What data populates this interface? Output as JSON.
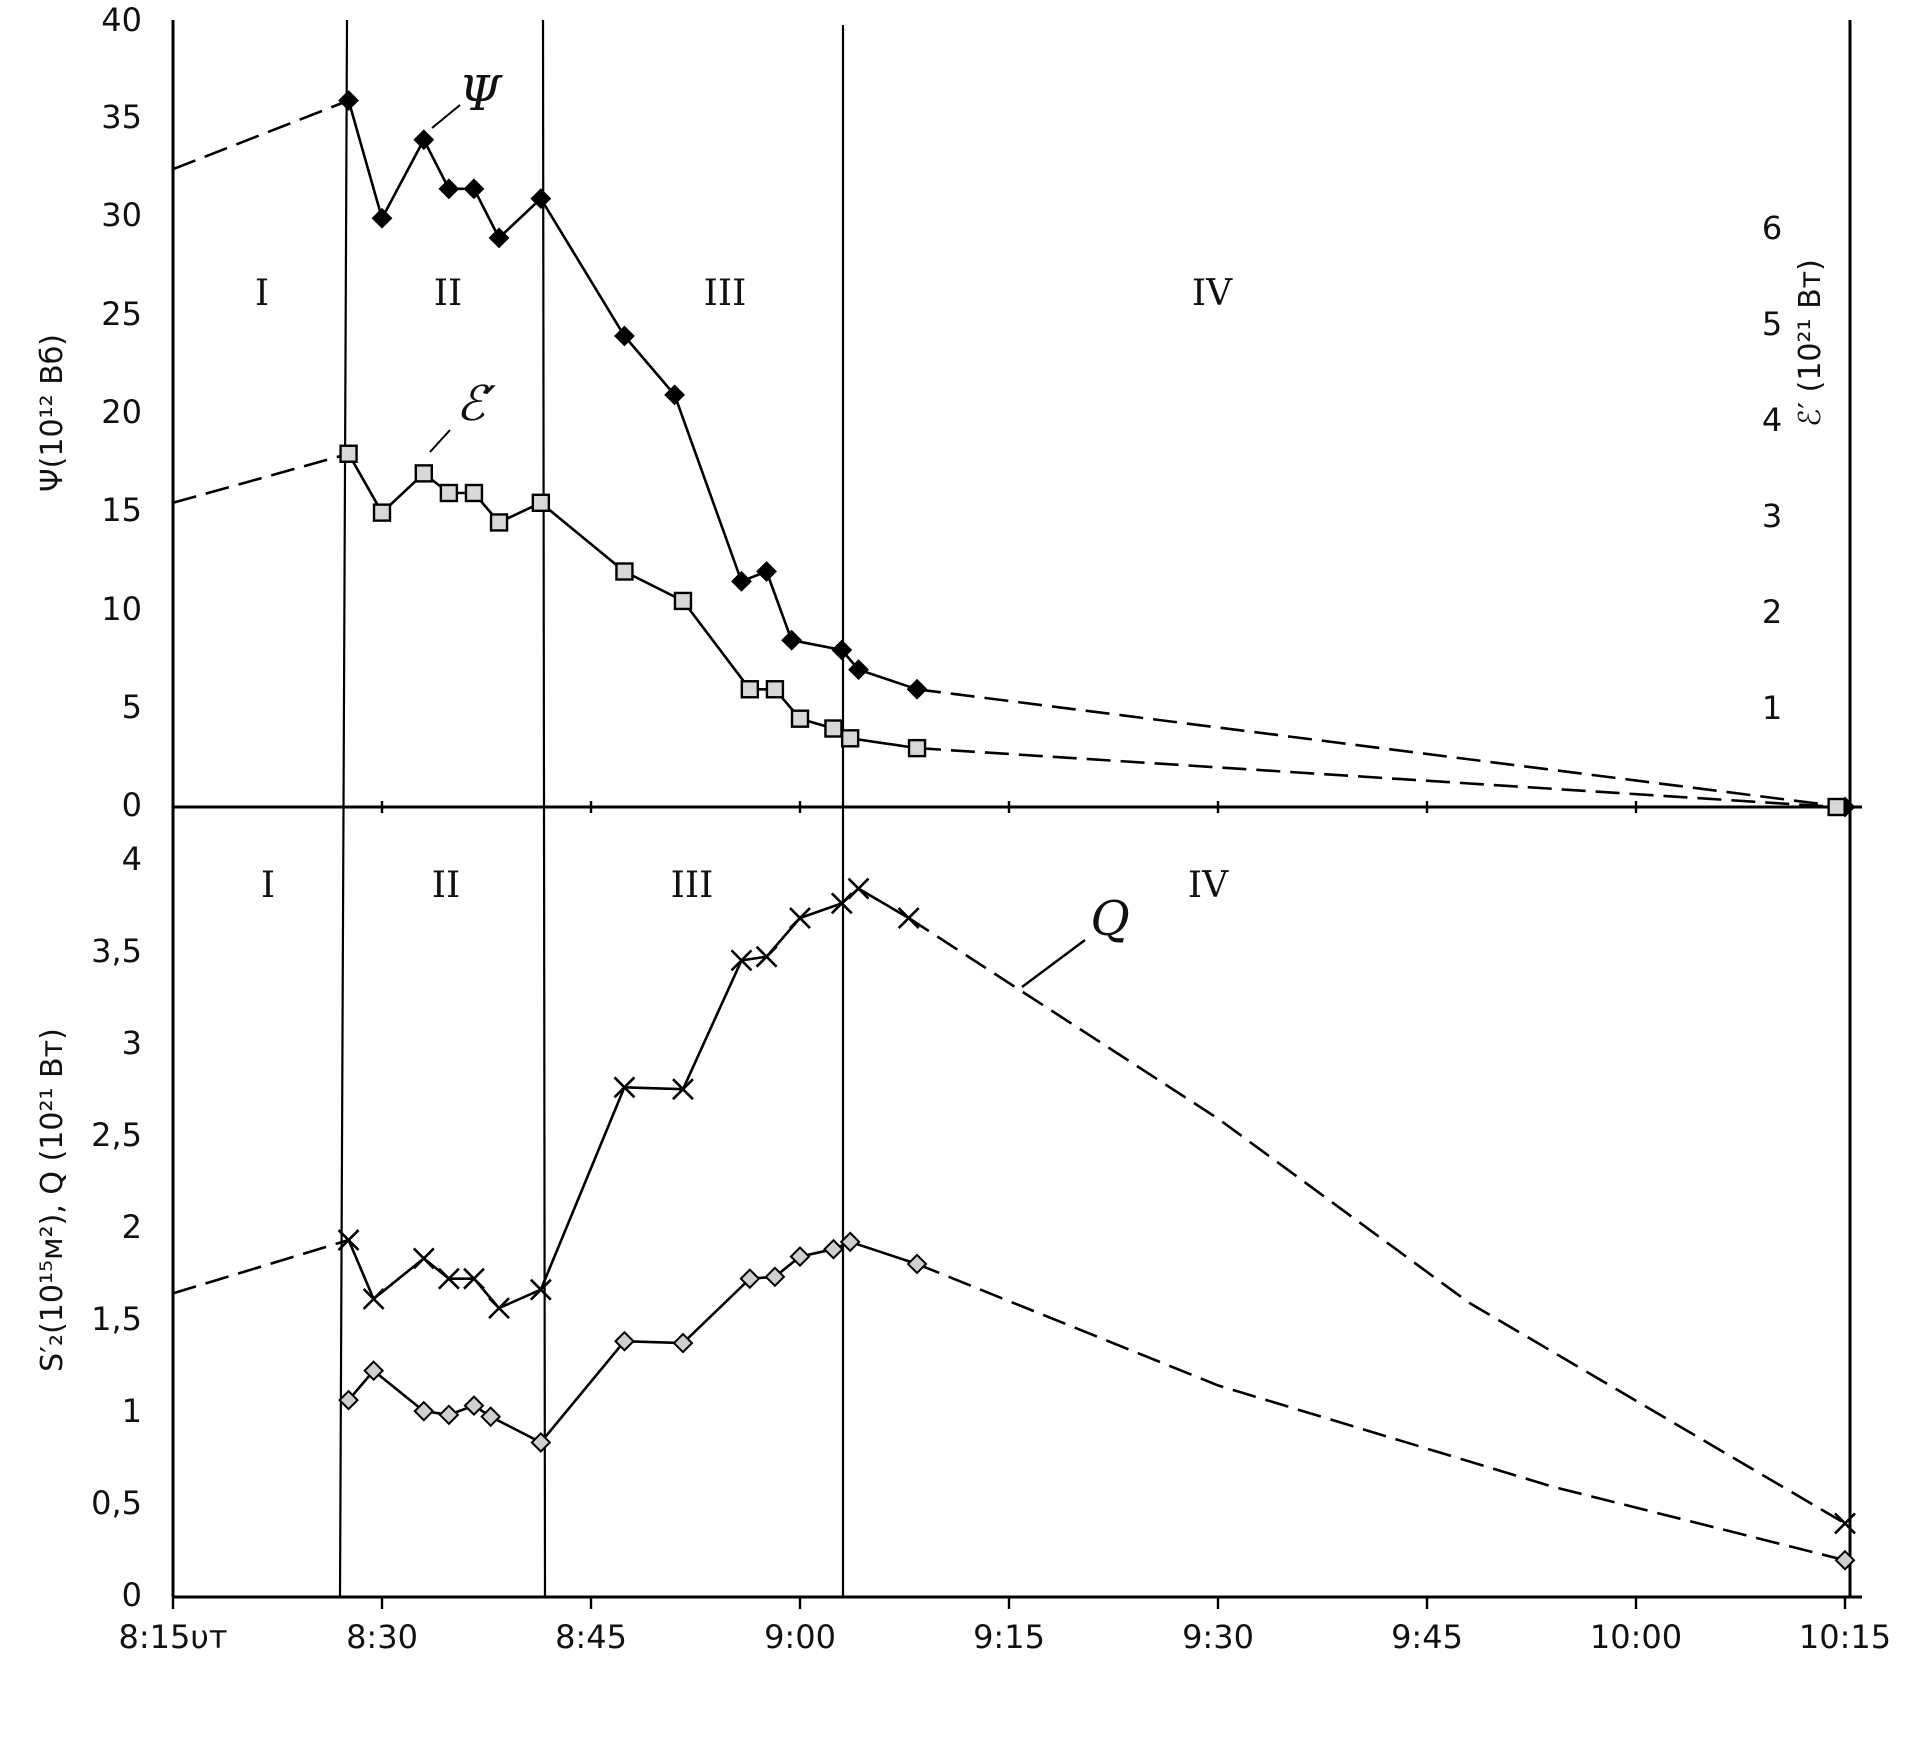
{
  "chart_data": [
    {
      "id": "top",
      "type": "line",
      "ylabel": "Ψ(10¹² Вб)",
      "y2label": "ℰ′ (10²¹ Вт)",
      "ylim": [
        0,
        40
      ],
      "yticks": [
        "0",
        "5",
        "10",
        "15",
        "20",
        "25",
        "30",
        "35",
        "40"
      ],
      "y2ticks": [
        "1",
        "2",
        "3",
        "4",
        "5",
        "6"
      ],
      "phase_labels": [
        "I",
        "II",
        "III",
        "IV"
      ],
      "series": [
        {
          "name": "Ψ",
          "marker": "diamond-filled",
          "solid": [
            [
              8.46,
              36
            ],
            [
              8.5,
              30
            ],
            [
              8.55,
              34
            ],
            [
              8.58,
              31.5
            ],
            [
              8.61,
              31.5
            ],
            [
              8.64,
              29
            ],
            [
              8.69,
              31
            ],
            [
              8.79,
              24
            ],
            [
              8.85,
              21
            ],
            [
              8.93,
              11.5
            ],
            [
              8.96,
              12
            ],
            [
              8.99,
              8.5
            ],
            [
              9.05,
              8
            ],
            [
              9.07,
              7
            ],
            [
              9.14,
              6
            ]
          ],
          "dashed": [
            [
              8.25,
              32.5
            ],
            [
              8.46,
              36
            ]
          ],
          "dashed_end": [
            [
              9.14,
              6
            ],
            [
              10.25,
              0
            ]
          ]
        },
        {
          "name": "ℰ′",
          "marker": "square",
          "solid": [
            [
              8.46,
              18
            ],
            [
              8.5,
              15
            ],
            [
              8.55,
              17
            ],
            [
              8.58,
              16
            ],
            [
              8.61,
              16
            ],
            [
              8.64,
              14.5
            ],
            [
              8.69,
              15.5
            ],
            [
              8.79,
              12
            ],
            [
              8.86,
              10.5
            ],
            [
              8.94,
              6
            ],
            [
              8.97,
              6
            ],
            [
              9.0,
              4.5
            ],
            [
              9.04,
              4
            ],
            [
              9.06,
              3.5
            ],
            [
              9.14,
              3
            ]
          ],
          "dashed": [
            [
              8.25,
              15.5
            ],
            [
              8.46,
              18
            ]
          ],
          "dashed_end": [
            [
              9.14,
              3
            ],
            [
              10.24,
              0
            ]
          ]
        }
      ]
    },
    {
      "id": "bottom",
      "type": "line",
      "ylabel": "S′₂(10¹⁵м²), Q (10²¹ Вт)",
      "ylim": [
        0,
        4
      ],
      "yticks": [
        "0",
        "0,5",
        "1",
        "1,5",
        "2",
        "2,5",
        "3",
        "3,5",
        "4"
      ],
      "xticks": [
        "8:15υт",
        "8:30",
        "8:45",
        "9:00",
        "9:15",
        "9:30",
        "9:45",
        "10:00",
        "10:15"
      ],
      "phase_labels": [
        "I",
        "II",
        "III",
        "IV"
      ],
      "series": [
        {
          "name": "Q",
          "marker": "x",
          "solid": [
            [
              8.46,
              1.94
            ],
            [
              8.49,
              1.62
            ],
            [
              8.55,
              1.84
            ],
            [
              8.58,
              1.73
            ],
            [
              8.61,
              1.73
            ],
            [
              8.64,
              1.57
            ],
            [
              8.69,
              1.67
            ],
            [
              8.79,
              2.77
            ],
            [
              8.86,
              2.76
            ],
            [
              8.93,
              3.46
            ],
            [
              8.96,
              3.48
            ],
            [
              9.0,
              3.69
            ],
            [
              9.05,
              3.77
            ],
            [
              9.07,
              3.85
            ],
            [
              9.13,
              3.69
            ]
          ],
          "dashed": [
            [
              8.25,
              1.65
            ],
            [
              8.46,
              1.94
            ]
          ],
          "dashed_end": [
            [
              9.13,
              3.69
            ],
            [
              9.5,
              2.6
            ],
            [
              9.8,
              1.6
            ],
            [
              10.25,
              0.4
            ]
          ]
        },
        {
          "name": "S′₂",
          "marker": "diamond",
          "solid": [
            [
              8.46,
              1.07
            ],
            [
              8.49,
              1.23
            ],
            [
              8.55,
              1.01
            ],
            [
              8.58,
              0.99
            ],
            [
              8.61,
              1.04
            ],
            [
              8.63,
              0.98
            ],
            [
              8.69,
              0.84
            ],
            [
              8.79,
              1.39
            ],
            [
              8.86,
              1.38
            ],
            [
              8.94,
              1.73
            ],
            [
              8.97,
              1.74
            ],
            [
              9.0,
              1.85
            ],
            [
              9.04,
              1.89
            ],
            [
              9.06,
              1.93
            ],
            [
              9.14,
              1.81
            ]
          ],
          "dashed_end": [
            [
              9.14,
              1.81
            ],
            [
              9.5,
              1.15
            ],
            [
              9.9,
              0.6
            ],
            [
              10.25,
              0.2
            ]
          ]
        }
      ]
    }
  ]
}
